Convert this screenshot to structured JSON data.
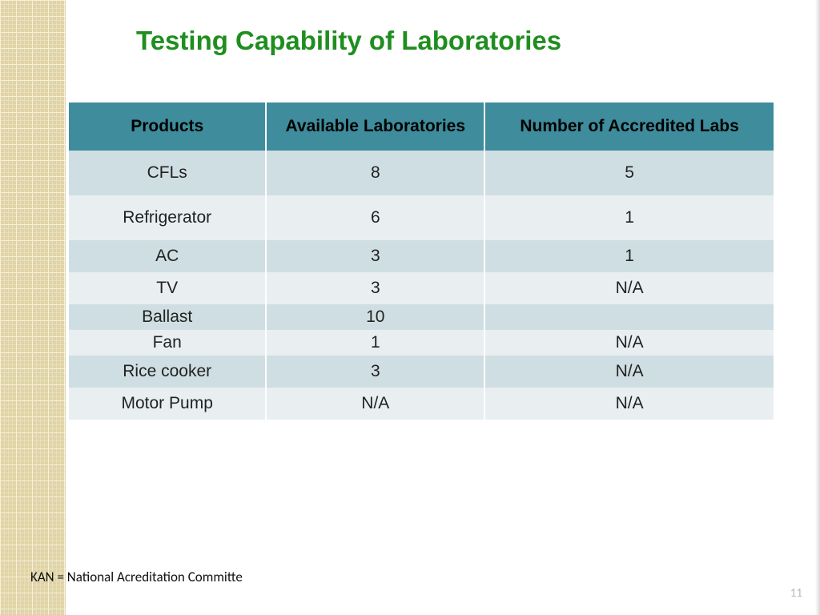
{
  "title": "Testing Capability of Laboratories",
  "table": {
    "type": "table",
    "header_bg": "#3e8c9c",
    "band_colors": [
      "#cfdee2",
      "#e9eff1"
    ],
    "border_color": "#ffffff",
    "columns": [
      "Products",
      "Available Laboratories",
      "Number of Accredited Labs"
    ],
    "col_widths": [
      "28%",
      "31%",
      "41%"
    ],
    "header_fontsize": 21,
    "cell_fontsize": 21,
    "rows": [
      {
        "cells": [
          "CFLs",
          "8",
          "5"
        ],
        "band": "a",
        "h": "tall"
      },
      {
        "cells": [
          "Refrigerator",
          "6",
          "1"
        ],
        "band": "b",
        "h": "tall"
      },
      {
        "cells": [
          "AC",
          "3",
          "1"
        ],
        "band": "a",
        "h": "med"
      },
      {
        "cells": [
          "TV",
          "3",
          "N/A"
        ],
        "band": "b",
        "h": "med"
      },
      {
        "cells": [
          "Ballast",
          "10",
          ""
        ],
        "band": "a",
        "h": "short"
      },
      {
        "cells": [
          "Fan",
          "1",
          "N/A"
        ],
        "band": "b",
        "h": "short"
      },
      {
        "cells": [
          "Rice cooker",
          "3",
          "N/A"
        ],
        "band": "a",
        "h": "med"
      },
      {
        "cells": [
          "Motor Pump",
          "N/A",
          "N/A"
        ],
        "band": "b",
        "h": "med"
      }
    ]
  },
  "footnote": "KAN = National Acreditation Committe",
  "page_number": "11",
  "colors": {
    "title": "#1f8e1f",
    "background": "#ffffff",
    "sidebar": "#e0d4a4",
    "page_num": "#b8b8b8"
  }
}
